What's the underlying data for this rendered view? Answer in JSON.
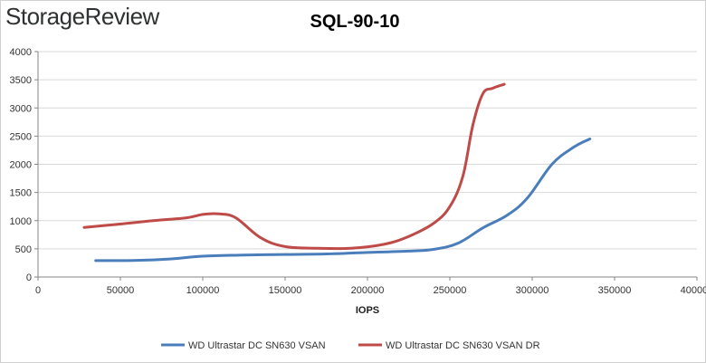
{
  "brand": "StorageReview",
  "chart_data": {
    "type": "line",
    "title": "SQL-90-10",
    "xlabel": "IOPS",
    "ylabel": "",
    "xlim": [
      0,
      400000
    ],
    "ylim": [
      0,
      4000
    ],
    "x_ticks": [
      "0",
      "50000",
      "100000",
      "150000",
      "200000",
      "250000",
      "300000",
      "350000",
      "400000"
    ],
    "y_ticks": [
      "0",
      "500",
      "1000",
      "1500",
      "2000",
      "2500",
      "3000",
      "3500",
      "4000"
    ],
    "grid": "horizontal",
    "legend_position": "bottom",
    "series": [
      {
        "name": "WD Ultrastar DC SN630 VSAN",
        "color": "#4a7ebb",
        "points": [
          [
            35000,
            290
          ],
          [
            60000,
            295
          ],
          [
            80000,
            320
          ],
          [
            100000,
            370
          ],
          [
            125000,
            390
          ],
          [
            150000,
            400
          ],
          [
            175000,
            410
          ],
          [
            200000,
            435
          ],
          [
            225000,
            460
          ],
          [
            240000,
            490
          ],
          [
            255000,
            600
          ],
          [
            270000,
            870
          ],
          [
            285000,
            1100
          ],
          [
            297000,
            1400
          ],
          [
            312000,
            2000
          ],
          [
            325000,
            2300
          ],
          [
            335000,
            2450
          ]
        ]
      },
      {
        "name": "WD Ultrastar DC SN630 VSAN DR",
        "color": "#be4b48",
        "points": [
          [
            28000,
            880
          ],
          [
            50000,
            940
          ],
          [
            70000,
            1000
          ],
          [
            90000,
            1050
          ],
          [
            100000,
            1110
          ],
          [
            110000,
            1120
          ],
          [
            120000,
            1050
          ],
          [
            135000,
            700
          ],
          [
            150000,
            540
          ],
          [
            170000,
            510
          ],
          [
            190000,
            510
          ],
          [
            210000,
            580
          ],
          [
            225000,
            720
          ],
          [
            240000,
            950
          ],
          [
            250000,
            1250
          ],
          [
            258000,
            1800
          ],
          [
            264000,
            2700
          ],
          [
            270000,
            3250
          ],
          [
            276000,
            3350
          ],
          [
            283000,
            3420
          ]
        ]
      }
    ]
  }
}
